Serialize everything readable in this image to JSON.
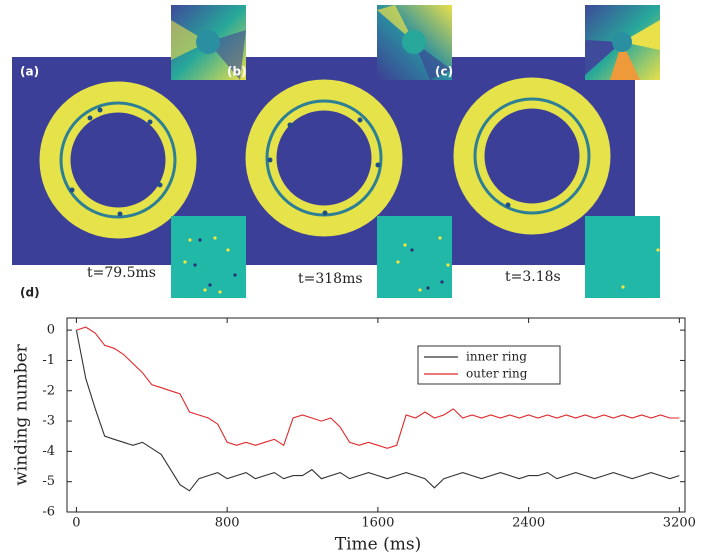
{
  "panels": [
    {
      "label": "(a)",
      "time": "t=79.5ms"
    },
    {
      "label": "(b)",
      "time": "t=318ms"
    },
    {
      "label": "(c)",
      "time": "t=3.18s"
    }
  ],
  "chart_data": {
    "type": "line",
    "panel_label": "(d)",
    "x_label": "Time (ms)",
    "y_label": "winding number",
    "x": [
      0,
      50,
      100,
      150,
      200,
      250,
      300,
      350,
      400,
      450,
      500,
      550,
      600,
      650,
      700,
      750,
      800,
      850,
      900,
      950,
      1000,
      1050,
      1100,
      1150,
      1200,
      1250,
      1300,
      1350,
      1400,
      1450,
      1500,
      1550,
      1600,
      1650,
      1700,
      1750,
      1800,
      1850,
      1900,
      1950,
      2000,
      2050,
      2100,
      2150,
      2200,
      2250,
      2300,
      2350,
      2400,
      2450,
      2500,
      2550,
      2600,
      2650,
      2700,
      2750,
      2800,
      2850,
      2900,
      2950,
      3000,
      3050,
      3100,
      3150,
      3200
    ],
    "series": [
      {
        "name": "inner ring",
        "color": "#333333",
        "values": [
          0,
          -1.6,
          -2.6,
          -3.5,
          -3.6,
          -3.7,
          -3.8,
          -3.7,
          -3.9,
          -4.1,
          -4.6,
          -5.1,
          -5.3,
          -4.9,
          -4.8,
          -4.7,
          -4.9,
          -4.8,
          -4.7,
          -4.9,
          -4.8,
          -4.7,
          -4.9,
          -4.8,
          -4.8,
          -4.6,
          -4.9,
          -4.8,
          -4.7,
          -4.9,
          -4.8,
          -4.7,
          -4.8,
          -4.9,
          -4.8,
          -4.7,
          -4.8,
          -4.9,
          -5.2,
          -4.9,
          -4.8,
          -4.7,
          -4.8,
          -4.9,
          -4.8,
          -4.7,
          -4.8,
          -4.9,
          -4.8,
          -4.8,
          -4.7,
          -4.9,
          -4.8,
          -4.7,
          -4.8,
          -4.9,
          -4.8,
          -4.7,
          -4.8,
          -4.9,
          -4.8,
          -4.7,
          -4.8,
          -4.9,
          -4.8
        ]
      },
      {
        "name": "outer ring",
        "color": "#e0282a",
        "values": [
          0,
          0.1,
          -0.1,
          -0.5,
          -0.6,
          -0.8,
          -1.1,
          -1.4,
          -1.8,
          -1.9,
          -2.0,
          -2.1,
          -2.7,
          -2.8,
          -2.9,
          -3.1,
          -3.7,
          -3.8,
          -3.7,
          -3.8,
          -3.7,
          -3.6,
          -3.8,
          -2.9,
          -2.8,
          -2.9,
          -3.0,
          -2.9,
          -3.2,
          -3.7,
          -3.8,
          -3.7,
          -3.8,
          -3.9,
          -3.8,
          -2.8,
          -2.9,
          -2.7,
          -2.9,
          -2.8,
          -2.6,
          -2.9,
          -2.8,
          -2.9,
          -2.8,
          -2.9,
          -2.8,
          -2.9,
          -2.8,
          -2.9,
          -2.8,
          -2.9,
          -2.8,
          -2.9,
          -2.8,
          -2.9,
          -2.8,
          -2.9,
          -2.8,
          -2.9,
          -2.8,
          -2.9,
          -2.8,
          -2.9,
          -2.9
        ]
      }
    ],
    "xlim": [
      -50,
      3230
    ],
    "xticks": [
      0,
      800,
      1600,
      2400,
      3200
    ],
    "ylim": [
      -6,
      0.4
    ],
    "yticks": [
      0,
      -1,
      -2,
      -3,
      -4,
      -5,
      -6
    ]
  }
}
